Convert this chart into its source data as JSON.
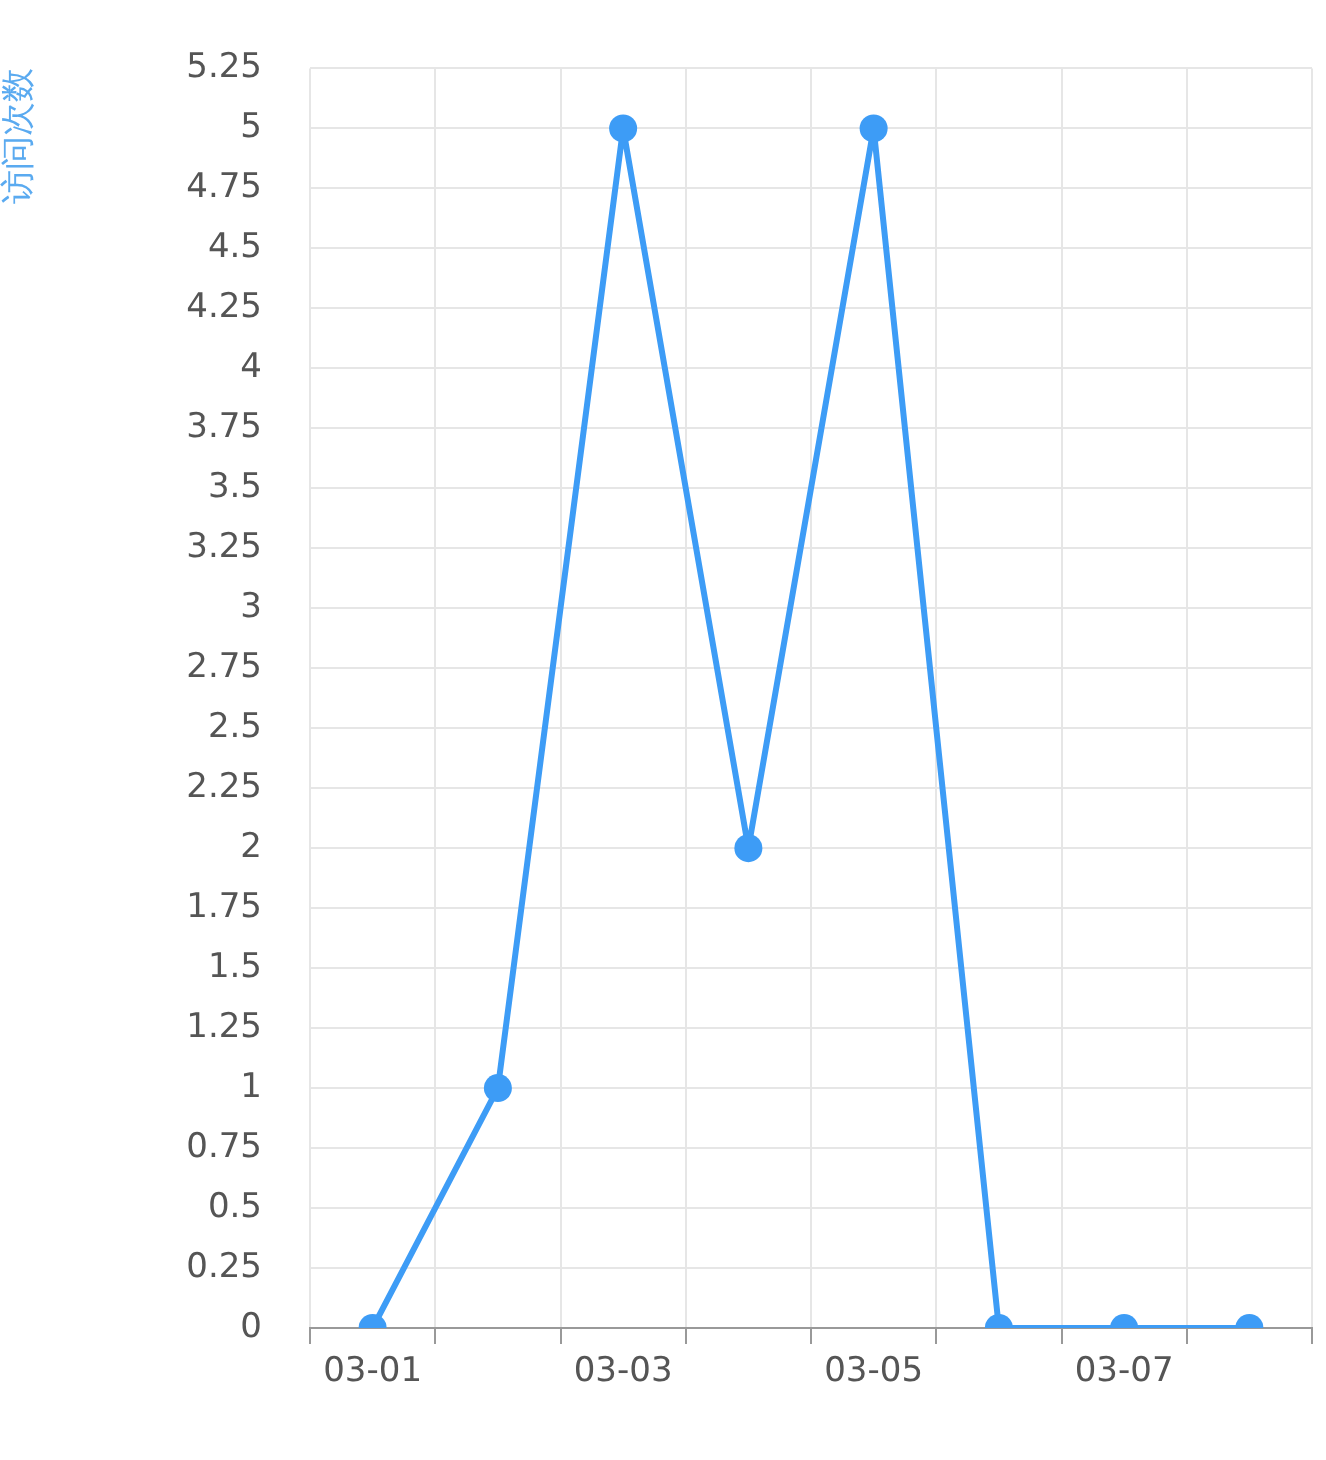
{
  "chart_data": {
    "type": "line",
    "ylabel": "访问次数",
    "categories": [
      "03-01",
      null,
      "03-03",
      null,
      "03-05",
      null,
      "03-07",
      null
    ],
    "series": [
      {
        "color": "#3d9cf6",
        "values": [
          0,
          1,
          5,
          2,
          5,
          0,
          0,
          0
        ]
      }
    ],
    "ylim": [
      0,
      5.25
    ],
    "yticks": [
      0,
      0.25,
      0.5,
      0.75,
      1,
      1.25,
      1.5,
      1.75,
      2,
      2.25,
      2.5,
      2.75,
      3,
      3.25,
      3.5,
      3.75,
      4,
      4.25,
      4.5,
      4.75,
      5,
      5.25
    ],
    "grid": true,
    "legend": false,
    "marker": "circle",
    "line_style": "solid"
  }
}
